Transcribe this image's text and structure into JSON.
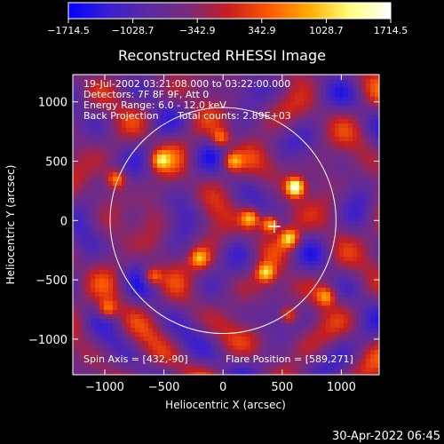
{
  "chart_data": {
    "type": "heatmap",
    "title": "Reconstructed RHESSI Image",
    "xlabel": "Heliocentric X (arcsec)",
    "ylabel": "Heliocentric Y (arcsec)",
    "xlim": [
      -1270,
      1320
    ],
    "ylim": [
      -1300,
      1230
    ],
    "x_ticks": [
      -1000,
      -500,
      0,
      500,
      1000
    ],
    "y_ticks": [
      -1000,
      -500,
      0,
      500,
      1000
    ],
    "x_tick_labels": [
      "−1000",
      "−500",
      "0",
      "500",
      "1000"
    ],
    "y_tick_labels": [
      "−1000",
      "−500",
      "0",
      "500",
      "1000"
    ],
    "colorbar": {
      "range": [
        -1714.5,
        1714.5
      ],
      "tick_labels": [
        "−1714.5",
        "−1028.7",
        "−342.9",
        "342.9",
        "1028.7",
        "1714.5"
      ],
      "colors": [
        "#0000ff",
        "#3a1fd0",
        "#5a2aa0",
        "#7a2a7a",
        "#c81e1e",
        "#ff5a00",
        "#ffb000",
        "#ffff80",
        "#ffffff"
      ]
    },
    "solar_limb_radius": 955,
    "solar_limb_color": "#ffffff",
    "flare_marker": [
      432,
      -50
    ],
    "sources": [
      {
        "x": 610,
        "y": 280,
        "strength": 1714.5
      },
      {
        "x": 400,
        "y": -30,
        "strength": 1350
      },
      {
        "x": 560,
        "y": -150,
        "strength": 1100
      },
      {
        "x": 360,
        "y": -440,
        "strength": 950
      },
      {
        "x": 230,
        "y": 20,
        "strength": 900
      },
      {
        "x": 80,
        "y": 500,
        "strength": 800
      },
      {
        "x": -20,
        "y": 690,
        "strength": 700
      },
      {
        "x": -900,
        "y": 350,
        "strength": 750
      },
      {
        "x": -530,
        "y": 510,
        "strength": 650
      },
      {
        "x": -600,
        "y": -470,
        "strength": 750
      },
      {
        "x": -200,
        "y": -320,
        "strength": 650
      },
      {
        "x": 560,
        "y": -800,
        "strength": 650
      },
      {
        "x": 870,
        "y": -640,
        "strength": 700
      },
      {
        "x": -980,
        "y": -750,
        "strength": 650
      }
    ],
    "annotations": {
      "line1": "19-Jul-2002 03:21:08.000 to 03:22:00.000",
      "line2": "Detectors: 7F 8F 9F, Att 0",
      "line3": "Energy Range: 6.0 - 12.0 keV",
      "line4_left": "Back Projection",
      "line4_right": "Total counts: 2.89E+03",
      "spin_axis": "Spin Axis = [432,-90]",
      "flare_position": "Flare Position = [589,271]"
    },
    "grid": false
  },
  "timestamp": "30-Apr-2022 06:45"
}
